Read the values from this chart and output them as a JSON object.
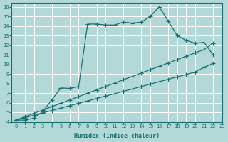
{
  "xlabel": "Humidex (Indice chaleur)",
  "bg_color": "#b2d8d8",
  "grid_color": "#ffffff",
  "line_color": "#1a7070",
  "xlim": [
    -0.5,
    23
  ],
  "ylim": [
    4,
    16.4
  ],
  "xticks": [
    0,
    1,
    2,
    3,
    4,
    5,
    6,
    7,
    8,
    9,
    10,
    11,
    12,
    13,
    14,
    15,
    16,
    17,
    18,
    19,
    20,
    21,
    22,
    23
  ],
  "yticks": [
    4,
    5,
    6,
    7,
    8,
    9,
    10,
    11,
    12,
    13,
    14,
    15,
    16
  ],
  "line1_x": [
    0,
    1,
    2,
    3,
    4,
    5,
    6,
    7,
    8,
    9,
    10,
    11,
    12,
    13,
    14,
    15,
    16,
    17,
    18,
    19,
    20,
    21,
    22
  ],
  "line1_y": [
    4.2,
    4.2,
    4.4,
    5.1,
    6.3,
    7.55,
    7.5,
    7.7,
    14.2,
    14.2,
    14.1,
    14.1,
    14.4,
    14.3,
    14.4,
    15.0,
    16.0,
    14.5,
    13.0,
    12.5,
    12.2,
    12.3,
    11.0
  ],
  "line2_x": [
    0,
    1,
    2,
    3,
    4,
    5,
    6,
    7,
    8,
    9,
    10,
    11,
    12,
    13,
    14,
    15,
    16,
    17,
    18,
    19,
    20,
    21,
    22
  ],
  "line2_y": [
    4.2,
    4.55,
    4.9,
    5.25,
    5.6,
    5.95,
    6.3,
    6.65,
    7.0,
    7.35,
    7.7,
    8.05,
    8.4,
    8.75,
    9.1,
    9.45,
    9.8,
    10.15,
    10.5,
    10.85,
    11.2,
    11.55,
    12.2
  ],
  "line3_x": [
    0,
    1,
    2,
    3,
    4,
    5,
    6,
    7,
    8,
    9,
    10,
    11,
    12,
    13,
    14,
    15,
    16,
    17,
    18,
    19,
    20,
    21,
    22
  ],
  "line3_y": [
    4.2,
    4.45,
    4.7,
    4.95,
    5.2,
    5.45,
    5.7,
    5.95,
    6.2,
    6.45,
    6.7,
    6.95,
    7.2,
    7.45,
    7.7,
    7.95,
    8.2,
    8.45,
    8.7,
    8.95,
    9.2,
    9.7,
    10.1
  ],
  "marker": "+",
  "markersize": 4,
  "markeredgewidth": 0.8,
  "linewidth": 0.9,
  "tick_fontsize": 5.0,
  "xlabel_fontsize": 6.0
}
